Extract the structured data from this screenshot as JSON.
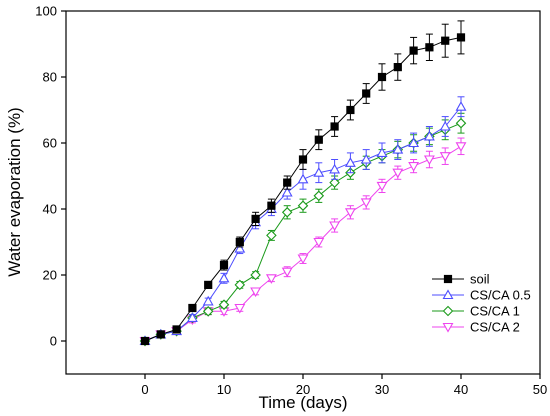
{
  "chart_data": {
    "type": "line",
    "title": "",
    "xlabel": "Time (days)",
    "ylabel": "Water evaporation (%)",
    "xlim": [
      -10,
      50
    ],
    "ylim": [
      -10,
      100
    ],
    "xticks": [
      0,
      10,
      20,
      30,
      40,
      50
    ],
    "yticks": [
      0,
      20,
      40,
      60,
      80,
      100
    ],
    "x": [
      0,
      2,
      4,
      6,
      8,
      10,
      12,
      14,
      16,
      18,
      20,
      22,
      24,
      26,
      28,
      30,
      32,
      34,
      36,
      38,
      40
    ],
    "legend_position": "bottom-right",
    "series": [
      {
        "name": "soil",
        "color": "#000000",
        "marker": "square-filled",
        "values": [
          0,
          2,
          3.5,
          10,
          17,
          23,
          30,
          37,
          41,
          48,
          55,
          61,
          65,
          70,
          75,
          80,
          83,
          88,
          89,
          91,
          92
        ],
        "errors": [
          1,
          1,
          1,
          1,
          1,
          1.5,
          1.5,
          2,
          2,
          2,
          3,
          3,
          3,
          3,
          3,
          4,
          4,
          4,
          4,
          5,
          5
        ]
      },
      {
        "name": "CS/CA 0.5",
        "color": "#4d4dff",
        "marker": "triangle-up-open",
        "values": [
          0,
          2,
          3,
          7,
          12,
          19,
          28,
          36,
          40,
          45,
          49,
          51,
          52,
          54,
          55,
          57,
          58,
          60,
          62,
          65,
          71
        ],
        "errors": [
          1,
          1,
          1,
          1,
          1,
          1.5,
          1.5,
          2,
          2,
          2,
          3,
          3,
          3,
          3,
          3,
          3,
          3,
          3,
          3,
          3,
          3
        ]
      },
      {
        "name": "CS/CA 1",
        "color": "#1a9a1a",
        "marker": "diamond-open",
        "values": [
          0,
          2,
          3,
          7,
          9,
          11,
          17,
          20,
          32,
          39,
          41,
          44,
          48,
          51,
          54,
          56,
          58,
          60,
          62,
          64,
          66
        ],
        "errors": [
          1,
          1,
          1,
          1,
          1,
          1,
          1,
          1,
          1.5,
          2,
          2,
          2,
          2,
          2,
          2,
          2,
          2.5,
          2.5,
          2.5,
          3,
          3
        ]
      },
      {
        "name": "CS/CA 2",
        "color": "#ee44ee",
        "marker": "triangle-down-open",
        "values": [
          0,
          2,
          3,
          6.5,
          9,
          9,
          10,
          15,
          19,
          21,
          25,
          30,
          35,
          39,
          42,
          47,
          51,
          53,
          55,
          56,
          59
        ],
        "errors": [
          1,
          1,
          1,
          1,
          1,
          1,
          1,
          1,
          1,
          1.5,
          1.5,
          1.5,
          2,
          2,
          2,
          2,
          2,
          2,
          2.5,
          2.5,
          2.5
        ]
      }
    ]
  }
}
